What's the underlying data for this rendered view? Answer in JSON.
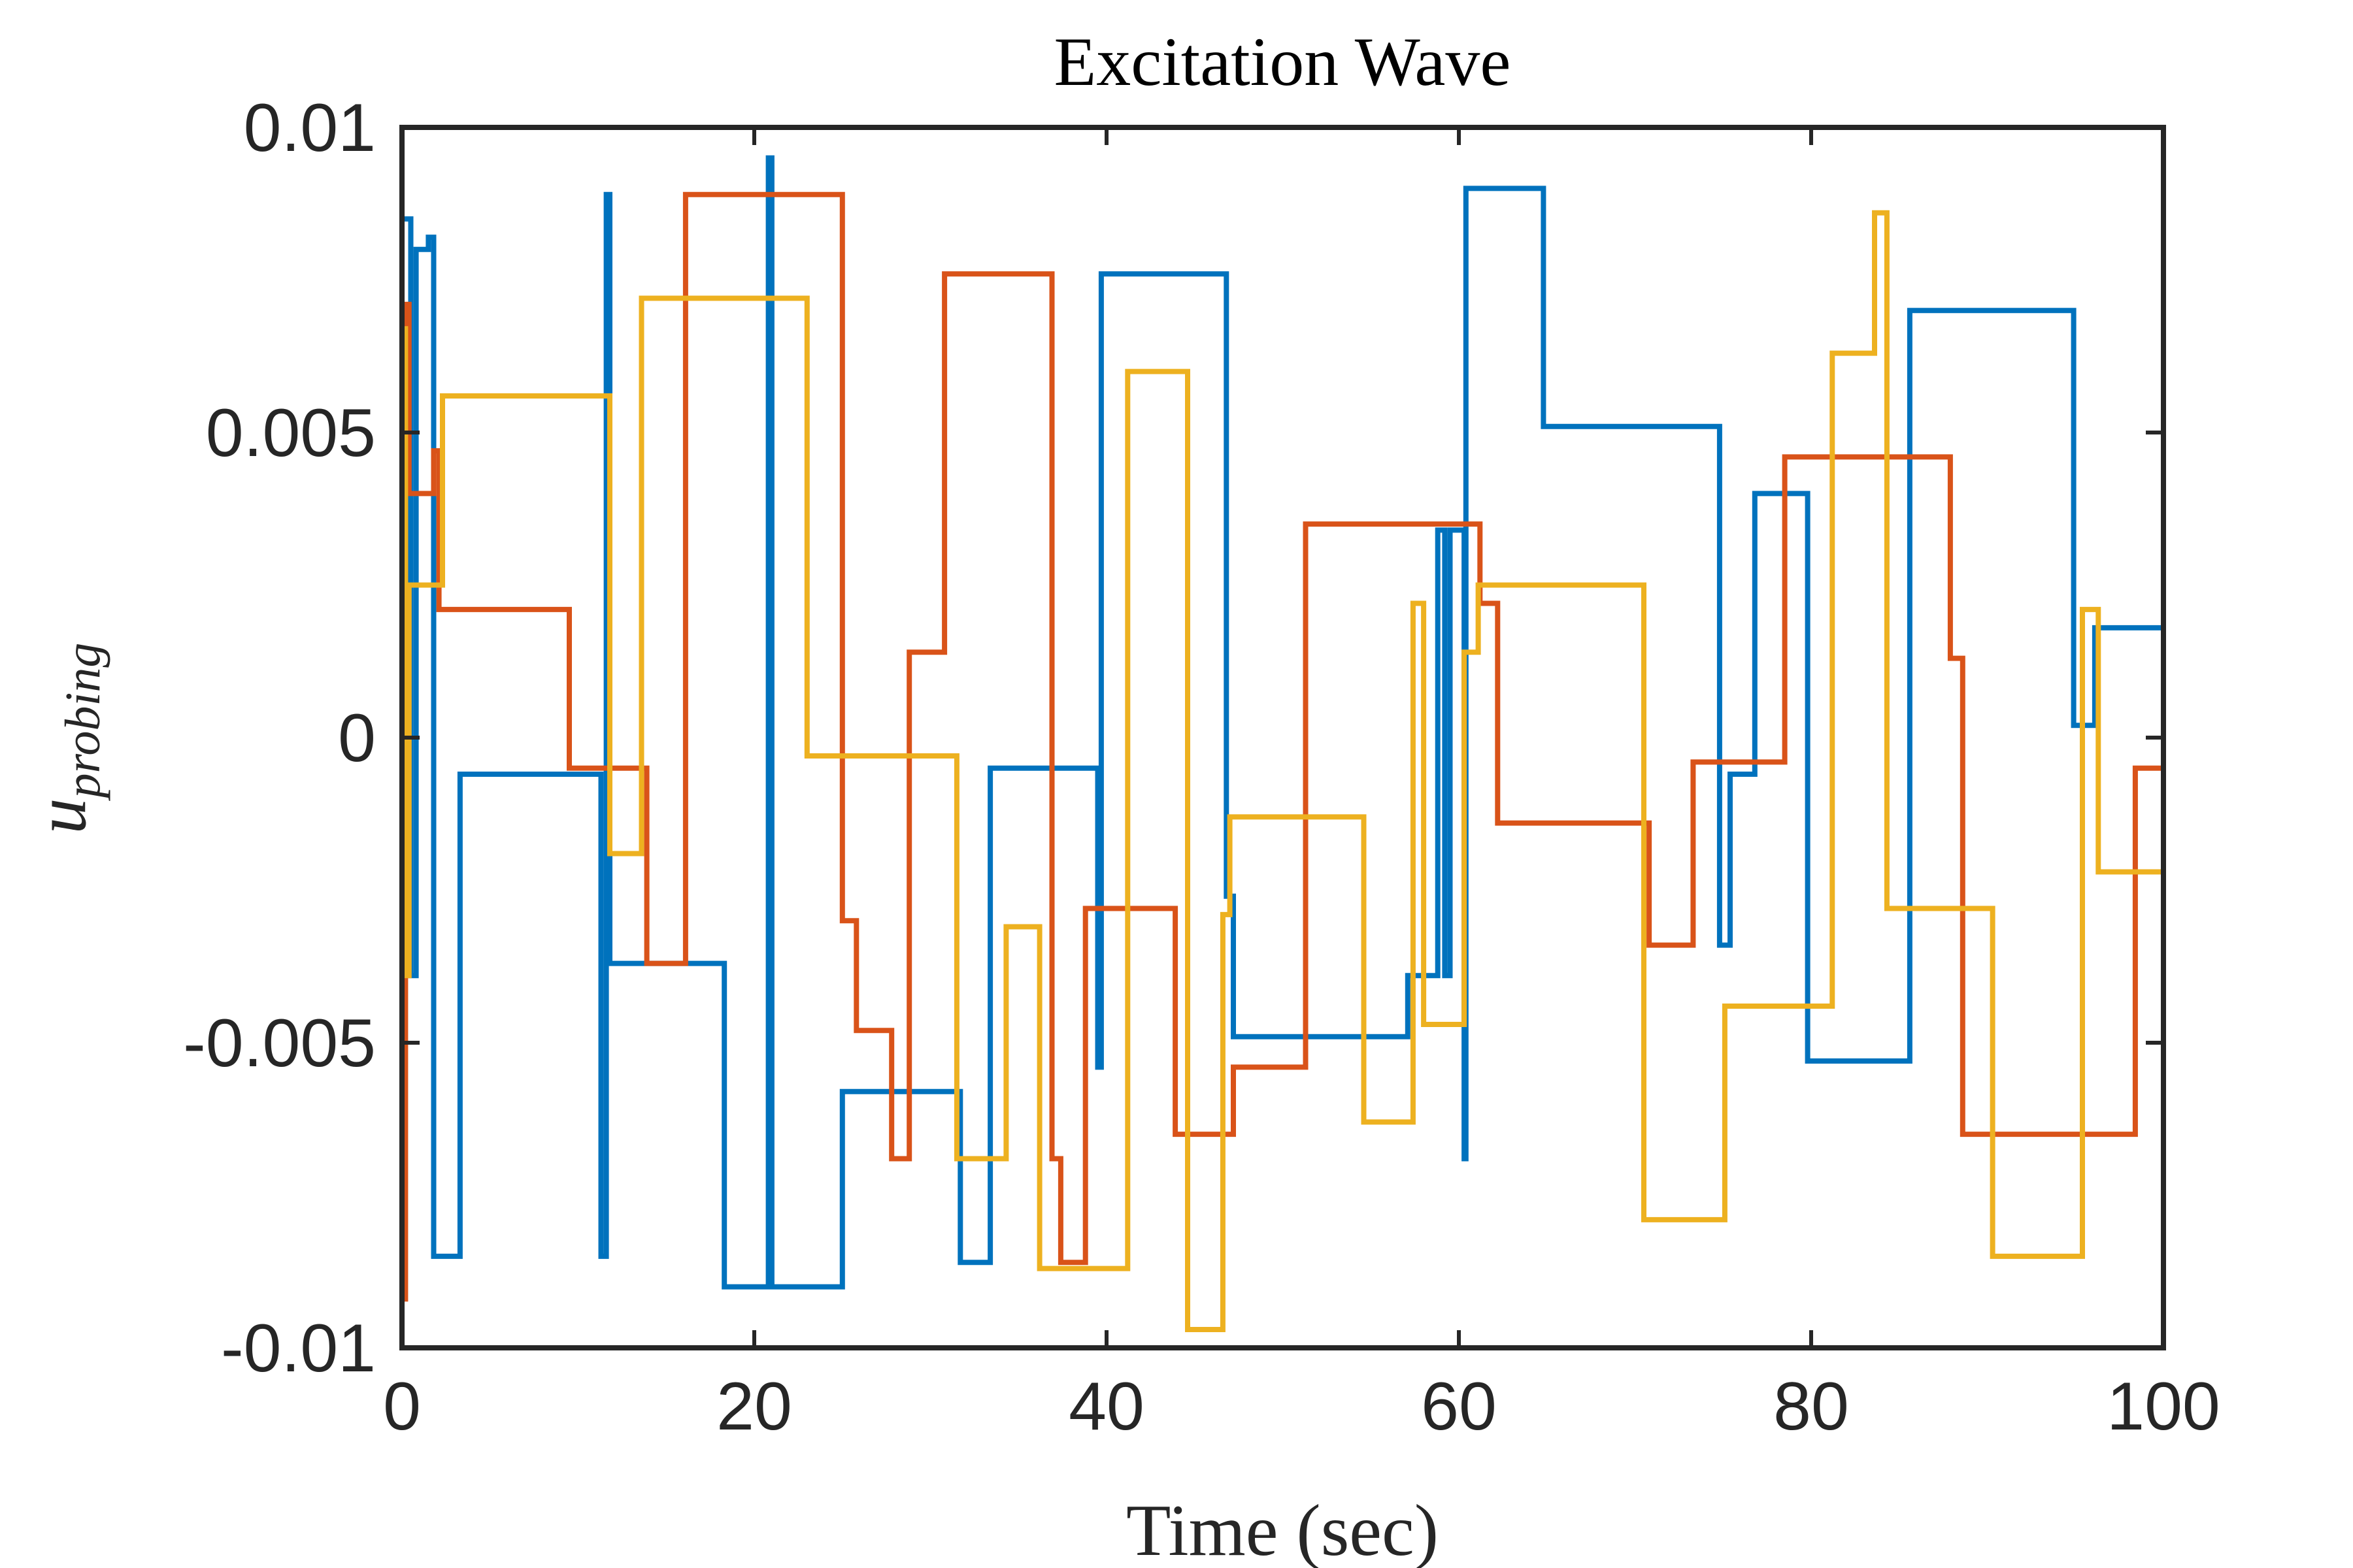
{
  "chart_data": {
    "type": "line",
    "title": "Excitation Wave",
    "xlabel": "Time (sec)",
    "ylabel": {
      "base": "u",
      "subscript": "probing"
    },
    "xlim": [
      0,
      100
    ],
    "ylim": [
      -0.01,
      0.01
    ],
    "xticks": [
      0,
      20,
      40,
      60,
      80,
      100
    ],
    "xtick_labels": [
      "0",
      "20",
      "40",
      "60",
      "80",
      "100"
    ],
    "yticks": [
      -0.01,
      -0.005,
      0,
      0.005,
      0.01
    ],
    "ytick_labels": [
      "-0.01",
      "-0.005",
      "0",
      "0.005",
      "0.01"
    ],
    "grid": false,
    "box": true,
    "series": [
      {
        "color": "#0072BD",
        "step_points": [
          [
            0,
            0.0085
          ],
          [
            0.5,
            -0.0039
          ],
          [
            0.8,
            0.008
          ],
          [
            1.5,
            0.0082
          ],
          [
            1.8,
            -0.0085
          ],
          [
            3.3,
            -0.0006
          ],
          [
            11.3,
            -0.0085
          ],
          [
            11.6,
            0.0089
          ],
          [
            11.8,
            -0.0037
          ],
          [
            18.3,
            -0.009
          ],
          [
            20.8,
            0.0095
          ],
          [
            21.0,
            -0.009
          ],
          [
            25.0,
            -0.0058
          ],
          [
            31.7,
            -0.0086
          ],
          [
            33.4,
            -0.0005
          ],
          [
            39.5,
            -0.0054
          ],
          [
            39.7,
            0.0076
          ],
          [
            41.0,
            0.0076
          ],
          [
            46.8,
            -0.0026
          ],
          [
            47.2,
            -0.0049
          ],
          [
            57.1,
            -0.0039
          ],
          [
            58.8,
            0.0034
          ],
          [
            59.2,
            -0.0039
          ],
          [
            59.5,
            0.0034
          ],
          [
            60.3,
            -0.0069
          ],
          [
            60.4,
            0.009
          ],
          [
            64.8,
            0.0051
          ],
          [
            74.8,
            -0.0034
          ],
          [
            75.4,
            -0.0006
          ],
          [
            76.8,
            0.004
          ],
          [
            79.8,
            -0.0053
          ],
          [
            85.6,
            0.007
          ],
          [
            94.9,
            0.0002
          ],
          [
            96.1,
            0.0018
          ],
          [
            100,
            0.0018
          ]
        ]
      },
      {
        "color": "#D95319",
        "step_points": [
          [
            0,
            -0.0092
          ],
          [
            0.2,
            0.0071
          ],
          [
            0.4,
            0.004
          ],
          [
            1.8,
            0.0047
          ],
          [
            2.1,
            0.0021
          ],
          [
            9.5,
            -0.0005
          ],
          [
            13.9,
            -0.0037
          ],
          [
            16.1,
            0.0089
          ],
          [
            25.0,
            -0.003
          ],
          [
            25.8,
            -0.0048
          ],
          [
            27.8,
            -0.0069
          ],
          [
            28.8,
            0.0014
          ],
          [
            30.8,
            0.0076
          ],
          [
            36.9,
            -0.0069
          ],
          [
            37.4,
            -0.0086
          ],
          [
            38.8,
            -0.0028
          ],
          [
            43.9,
            -0.0065
          ],
          [
            47.2,
            -0.0054
          ],
          [
            51.3,
            0.0035
          ],
          [
            61.2,
            0.0022
          ],
          [
            62.2,
            -0.0014
          ],
          [
            70.8,
            -0.0034
          ],
          [
            73.3,
            -0.0004
          ],
          [
            76.3,
            -0.0004
          ],
          [
            78.5,
            0.0046
          ],
          [
            87.9,
            0.0013
          ],
          [
            88.6,
            -0.0065
          ],
          [
            98.4,
            -0.0005
          ],
          [
            100,
            -0.0005
          ]
        ]
      },
      {
        "color": "#EDB120",
        "step_points": [
          [
            0,
            0.0067
          ],
          [
            0.2,
            -0.0039
          ],
          [
            0.4,
            0.0025
          ],
          [
            2.3,
            0.0056
          ],
          [
            11.8,
            -0.0019
          ],
          [
            13.6,
            0.0072
          ],
          [
            23.0,
            -0.0003
          ],
          [
            31.5,
            -0.0069
          ],
          [
            34.3,
            -0.0031
          ],
          [
            36.2,
            -0.0087
          ],
          [
            41.2,
            0.006
          ],
          [
            44.6,
            -0.0097
          ],
          [
            46.6,
            -0.0029
          ],
          [
            47.0,
            -0.0013
          ],
          [
            54.6,
            -0.0063
          ],
          [
            57.4,
            0.0022
          ],
          [
            58.0,
            -0.0047
          ],
          [
            60.3,
            0.0014
          ],
          [
            61.1,
            0.0025
          ],
          [
            70.5,
            -0.0079
          ],
          [
            75.1,
            -0.0044
          ],
          [
            81.2,
            0.0063
          ],
          [
            83.6,
            0.0086
          ],
          [
            84.3,
            -0.0028
          ],
          [
            90.3,
            -0.0085
          ],
          [
            95.4,
            0.0021
          ],
          [
            96.3,
            -0.0022
          ],
          [
            100,
            -0.0022
          ]
        ]
      }
    ]
  }
}
